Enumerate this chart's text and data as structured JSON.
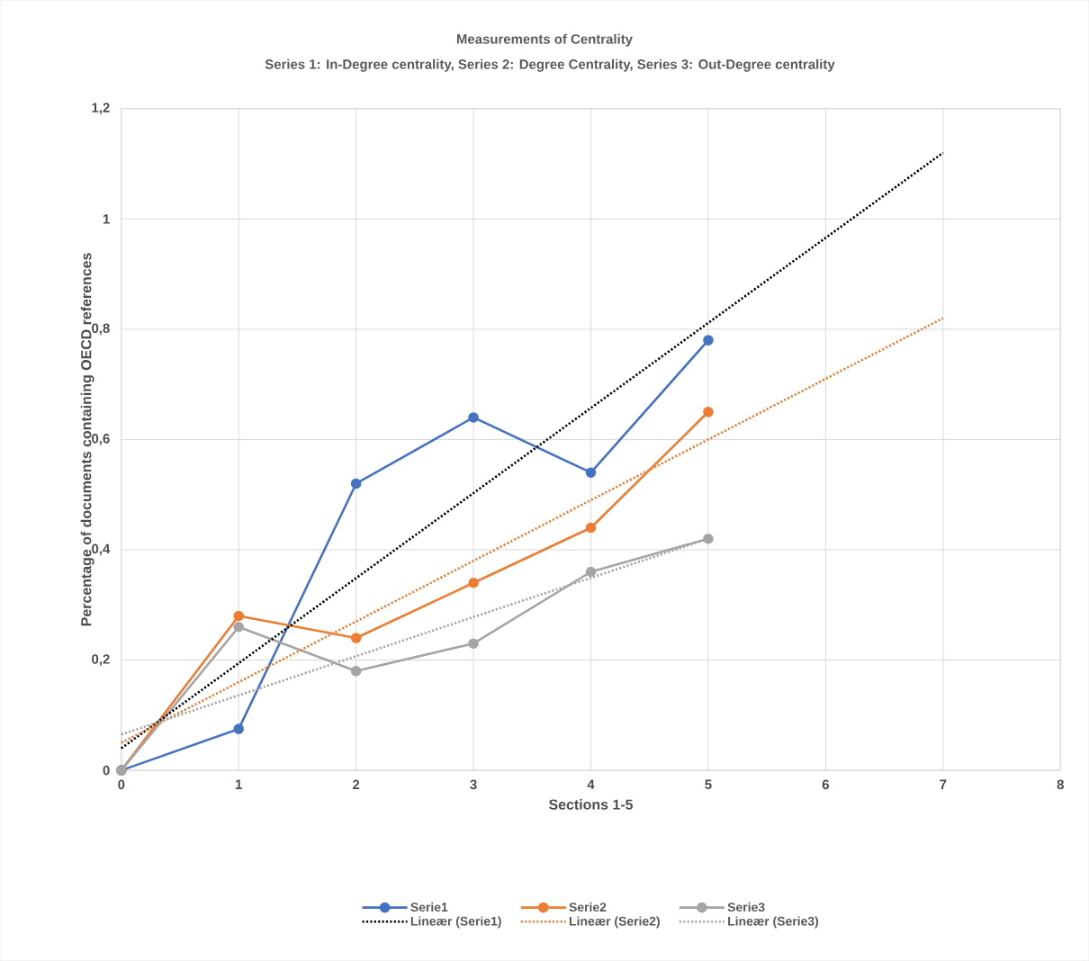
{
  "chart_data": {
    "type": "line",
    "title": "Measurements of Centrality",
    "subtitle": "Series 1: In-Degree centrality, Series 2: Degree Centrality, Series 3: Out-Degree centrality",
    "xlabel": "Sections 1-5",
    "ylabel": "Percentage of documents containing OECD references",
    "x": [
      0,
      1,
      2,
      3,
      4,
      5
    ],
    "series": [
      {
        "name": "Serie1",
        "color": "#4472c4",
        "values": [
          0,
          0.075,
          0.52,
          0.64,
          0.54,
          0.78
        ],
        "marker": "circle",
        "line_style": "solid"
      },
      {
        "name": "Serie2",
        "color": "#ed7d31",
        "values": [
          0,
          0.28,
          0.24,
          0.34,
          0.44,
          0.65
        ],
        "marker": "circle",
        "line_style": "solid"
      },
      {
        "name": "Serie3",
        "color": "#a5a5a5",
        "values": [
          0,
          0.26,
          0.18,
          0.23,
          0.36,
          0.42
        ],
        "marker": "circle",
        "line_style": "solid"
      },
      {
        "name": "Lineær (Serie1)",
        "color": "#000000",
        "type": "line",
        "x": [
          0,
          7
        ],
        "values": [
          0.04,
          1.12
        ],
        "marker": "none",
        "line_style": "dotted"
      },
      {
        "name": "Lineær (Serie2)",
        "color": "#ed7d31",
        "type": "line",
        "x": [
          0,
          7
        ],
        "values": [
          0.05,
          0.82
        ],
        "marker": "none",
        "line_style": "dotted"
      },
      {
        "name": "Lineær (Serie3)",
        "color": "#a5a5a5",
        "type": "line",
        "x": [
          0,
          5
        ],
        "values": [
          0.065,
          0.42
        ],
        "marker": "none",
        "line_style": "dotted"
      }
    ],
    "xlim": [
      0,
      8
    ],
    "xticks": [
      0,
      1,
      2,
      3,
      4,
      5,
      6,
      7,
      8
    ],
    "ylim": [
      0,
      1.2
    ],
    "yticks": [
      0,
      {
        "value": 0.2,
        "label": "0,2"
      },
      {
        "value": 0.4,
        "label": "0,4"
      },
      {
        "value": 0.6,
        "label": "0,6"
      },
      {
        "value": 0.8,
        "label": "0,8"
      },
      1,
      {
        "value": 1.2,
        "label": "1,2"
      }
    ],
    "grid": true,
    "legend": "bottom"
  }
}
